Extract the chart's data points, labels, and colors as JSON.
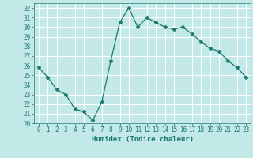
{
  "x": [
    0,
    1,
    2,
    3,
    4,
    5,
    6,
    7,
    8,
    9,
    10,
    11,
    12,
    13,
    14,
    15,
    16,
    17,
    18,
    19,
    20,
    21,
    22,
    23
  ],
  "y": [
    25.8,
    24.8,
    23.5,
    23.0,
    21.5,
    21.2,
    20.3,
    22.2,
    26.5,
    30.5,
    32.0,
    30.0,
    31.0,
    30.5,
    30.0,
    29.8,
    30.0,
    29.3,
    28.5,
    27.8,
    27.5,
    26.5,
    25.8,
    24.8
  ],
  "line_color": "#1a7a6e",
  "marker": "D",
  "marker_size": 2.5,
  "bg_color": "#c2e8e8",
  "grid_color": "#ffffff",
  "xlabel": "Humidex (Indice chaleur)",
  "ylabel_ticks": [
    20,
    21,
    22,
    23,
    24,
    25,
    26,
    27,
    28,
    29,
    30,
    31,
    32
  ],
  "xlim": [
    -0.5,
    23.5
  ],
  "ylim": [
    20,
    32.5
  ],
  "font_color": "#1a7a6e",
  "tick_fontsize": 5.5,
  "xlabel_fontsize": 6.5
}
